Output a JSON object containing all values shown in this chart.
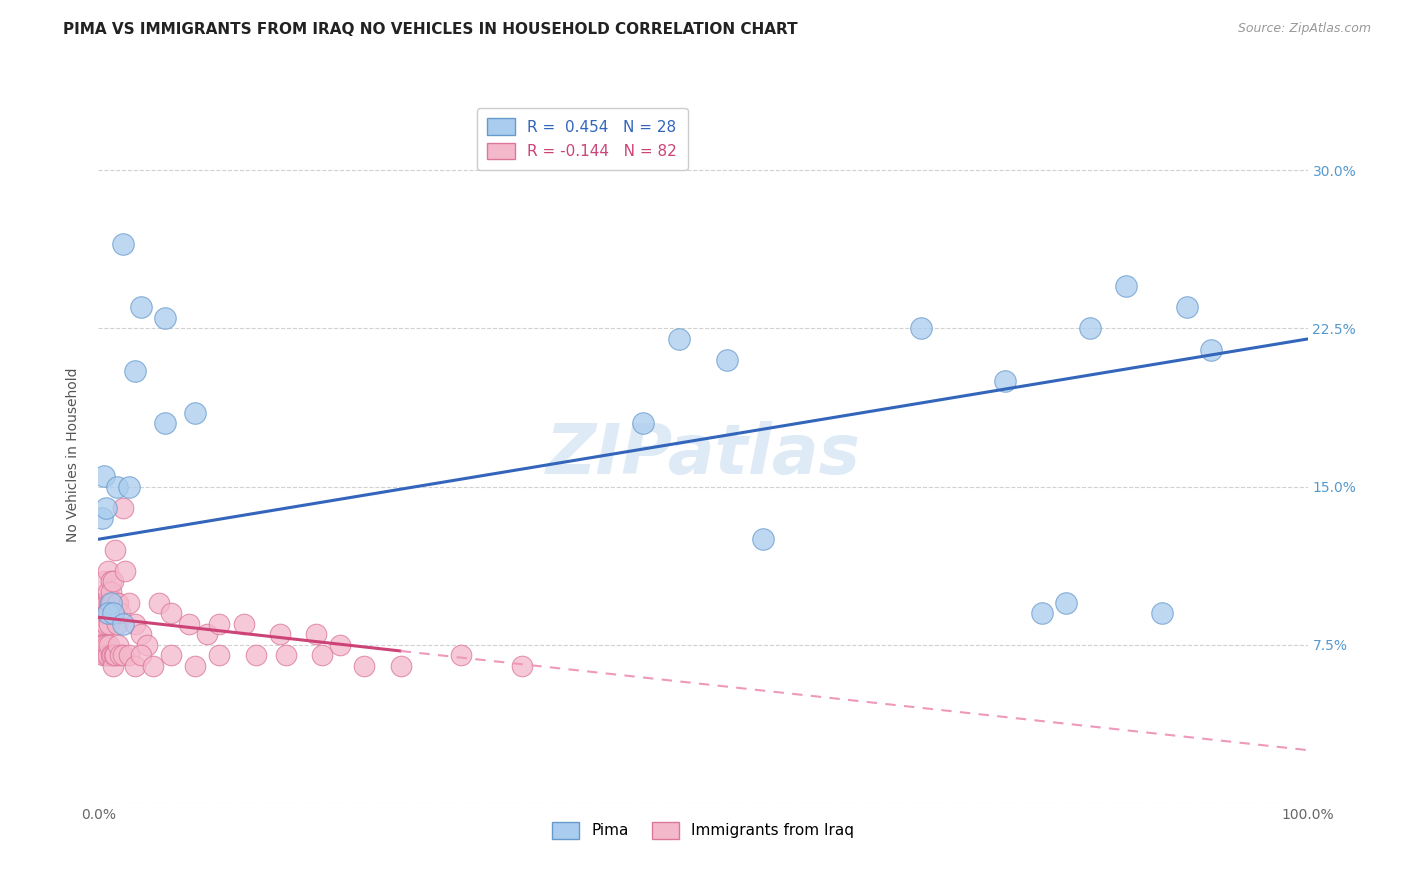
{
  "title": "PIMA VS IMMIGRANTS FROM IRAQ NO VEHICLES IN HOUSEHOLD CORRELATION CHART",
  "source": "Source: ZipAtlas.com",
  "ylabel": "No Vehicles in Household",
  "watermark": "ZIPatlas",
  "xlim": [
    0.0,
    100.0
  ],
  "ylim": [
    0.0,
    33.0
  ],
  "yticks": [
    0.0,
    7.5,
    15.0,
    22.5,
    30.0
  ],
  "xtick_positions": [
    0.0,
    100.0
  ],
  "xtick_labels": [
    "0.0%",
    "100.0%"
  ],
  "ytick_labels": [
    "",
    "7.5%",
    "15.0%",
    "22.5%",
    "30.0%"
  ],
  "legend_blue_r": "R =  0.454",
  "legend_blue_n": "N = 28",
  "legend_pink_r": "R = -0.144",
  "legend_pink_n": "N = 82",
  "blue_color": "#aaccee",
  "pink_color": "#f4b8cb",
  "blue_edge_color": "#6699cc",
  "pink_edge_color": "#dd7799",
  "blue_line_color": "#3366bb",
  "pink_line_color": "#cc4477",
  "pink_dash_color": "#ee99bb",
  "background_color": "#ffffff",
  "grid_color": "#cccccc",
  "blue_scatter_x": [
    2.0,
    3.5,
    5.5,
    3.0,
    8.0,
    0.5,
    1.5,
    2.5,
    48.0,
    52.0,
    68.0,
    82.0,
    85.0,
    90.0,
    75.0,
    92.0,
    45.0,
    1.0,
    0.8,
    1.2,
    0.3,
    2.0,
    5.5,
    80.0,
    88.0,
    78.0,
    55.0,
    0.6
  ],
  "blue_scatter_y": [
    26.5,
    23.5,
    23.0,
    20.5,
    18.5,
    15.5,
    15.0,
    15.0,
    22.0,
    21.0,
    22.5,
    22.5,
    24.5,
    23.5,
    20.0,
    21.5,
    18.0,
    9.5,
    9.0,
    9.0,
    13.5,
    8.5,
    18.0,
    9.5,
    9.0,
    9.0,
    12.5,
    14.0
  ],
  "pink_scatter_x": [
    0.1,
    0.15,
    0.2,
    0.2,
    0.25,
    0.3,
    0.3,
    0.35,
    0.4,
    0.4,
    0.45,
    0.5,
    0.5,
    0.55,
    0.6,
    0.6,
    0.65,
    0.7,
    0.7,
    0.75,
    0.8,
    0.8,
    0.85,
    0.9,
    0.9,
    0.95,
    1.0,
    1.0,
    1.1,
    1.2,
    1.3,
    1.4,
    1.5,
    1.5,
    1.6,
    1.8,
    2.0,
    2.2,
    2.5,
    3.0,
    3.5,
    4.0,
    5.0,
    6.0,
    7.5,
    9.0,
    10.0,
    12.0,
    15.0,
    18.0,
    20.0,
    0.2,
    0.3,
    0.35,
    0.4,
    0.5,
    0.6,
    0.7,
    0.8,
    0.9,
    1.0,
    1.1,
    1.2,
    1.3,
    1.4,
    1.6,
    1.8,
    2.0,
    2.5,
    3.0,
    3.5,
    4.5,
    6.0,
    8.0,
    10.0,
    13.0,
    15.5,
    18.5,
    22.0,
    25.0,
    30.0,
    35.0
  ],
  "pink_scatter_y": [
    8.5,
    7.5,
    9.5,
    9.0,
    8.5,
    9.0,
    8.5,
    8.0,
    9.5,
    9.0,
    9.0,
    10.5,
    9.5,
    9.5,
    9.5,
    9.0,
    8.5,
    9.5,
    9.0,
    9.0,
    11.0,
    10.0,
    9.5,
    9.0,
    8.5,
    9.5,
    10.5,
    10.0,
    9.5,
    10.5,
    9.0,
    12.0,
    9.5,
    8.5,
    9.5,
    9.0,
    14.0,
    11.0,
    9.5,
    8.5,
    8.0,
    7.5,
    9.5,
    9.0,
    8.5,
    8.0,
    8.5,
    8.5,
    8.0,
    8.0,
    7.5,
    7.5,
    7.5,
    7.0,
    7.5,
    7.5,
    7.0,
    7.5,
    7.0,
    7.5,
    7.0,
    7.0,
    6.5,
    7.0,
    7.0,
    7.5,
    7.0,
    7.0,
    7.0,
    6.5,
    7.0,
    6.5,
    7.0,
    6.5,
    7.0,
    7.0,
    7.0,
    7.0,
    6.5,
    6.5,
    7.0,
    6.5
  ],
  "blue_line_x0": 0.0,
  "blue_line_x1": 100.0,
  "blue_line_y0": 12.5,
  "blue_line_y1": 22.0,
  "pink_line_x0": 0.0,
  "pink_line_x1": 25.0,
  "pink_line_y0": 8.8,
  "pink_line_y1": 7.2,
  "pink_dash_x0": 25.0,
  "pink_dash_x1": 100.0,
  "pink_dash_y0": 7.2,
  "pink_dash_y1": 2.5,
  "title_fontsize": 11,
  "source_fontsize": 9,
  "label_fontsize": 10,
  "tick_fontsize": 10,
  "legend_fontsize": 11,
  "watermark_fontsize": 50,
  "watermark_color": "#c8ddf0",
  "watermark_alpha": 0.6
}
